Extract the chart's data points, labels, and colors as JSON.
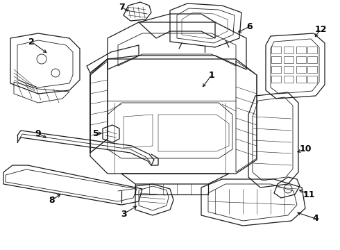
{
  "background_color": "#ffffff",
  "line_color": "#1a1a1a",
  "text_color": "#000000",
  "fig_width": 4.9,
  "fig_height": 3.6,
  "dpi": 100,
  "lw_main": 0.9,
  "lw_detail": 0.6,
  "lw_thin": 0.4,
  "font_size_label": 9.0
}
